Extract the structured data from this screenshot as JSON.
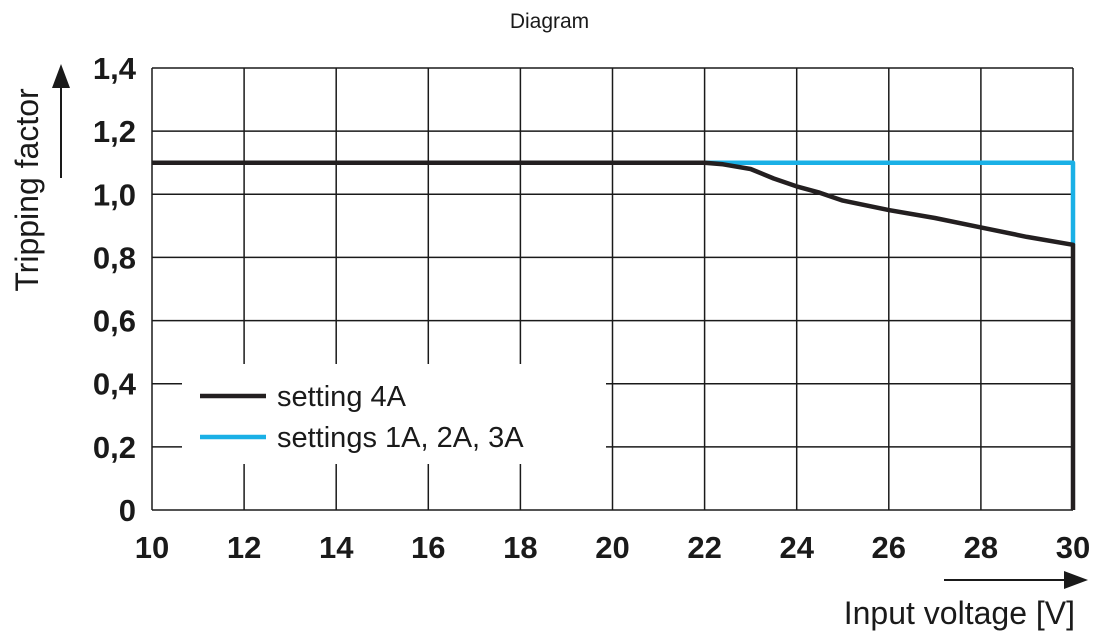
{
  "header": {
    "title": "Diagram"
  },
  "colors": {
    "series_black": "#231f20",
    "series_cyan": "#1ab0e6",
    "grid": "#1a1a1a"
  },
  "chart_data": {
    "type": "line",
    "title": "Diagram",
    "xlabel": "Input voltage [V]",
    "ylabel": "Tripping factor",
    "xlim": [
      10,
      30
    ],
    "ylim": [
      0,
      1.4
    ],
    "grid": true,
    "legend_position": "bottom-left",
    "x_ticks": [
      10,
      12,
      14,
      16,
      18,
      20,
      22,
      24,
      26,
      28,
      30
    ],
    "x_tick_labels": [
      "10",
      "12",
      "14",
      "16",
      "18",
      "20",
      "22",
      "24",
      "26",
      "28",
      "30"
    ],
    "y_ticks": [
      0,
      0.2,
      0.4,
      0.6,
      0.8,
      1.0,
      1.2,
      1.4
    ],
    "y_tick_labels": [
      "0",
      "0,2",
      "0,4",
      "0,6",
      "0,8",
      "1,0",
      "1,2",
      "1,4"
    ],
    "series": [
      {
        "name": "settings 1A, 2A, 3A",
        "color": "#1ab0e6",
        "points": [
          [
            10,
            1.1
          ],
          [
            30,
            1.1
          ],
          [
            30,
            0.84
          ]
        ]
      },
      {
        "name": "setting 4A",
        "color": "#231f20",
        "points": [
          [
            10,
            1.1
          ],
          [
            22,
            1.1
          ],
          [
            22.4,
            1.095
          ],
          [
            23,
            1.08
          ],
          [
            23.5,
            1.05
          ],
          [
            24,
            1.025
          ],
          [
            24.5,
            1.005
          ],
          [
            25,
            0.98
          ],
          [
            26,
            0.95
          ],
          [
            27,
            0.925
          ],
          [
            28,
            0.895
          ],
          [
            29,
            0.865
          ],
          [
            30,
            0.84
          ],
          [
            30,
            0
          ]
        ]
      }
    ],
    "legend": [
      {
        "label": "setting 4A",
        "color": "#231f20"
      },
      {
        "label": "settings 1A, 2A, 3A",
        "color": "#1ab0e6"
      }
    ]
  }
}
